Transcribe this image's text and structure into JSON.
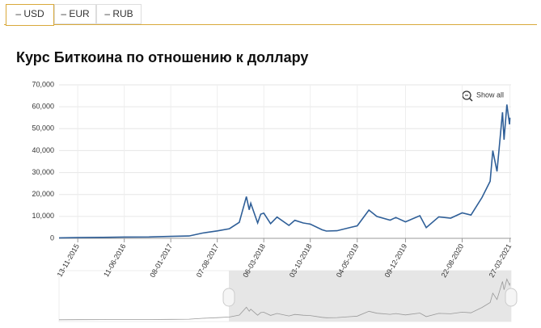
{
  "tabs": [
    "– USD",
    "– EUR",
    "– RUB"
  ],
  "chart_data": {
    "type": "line",
    "title": "Курс Биткоина по отношению к доллару",
    "reset_zoom": "Show all",
    "series": [
      {
        "color": "#2f5f98",
        "x": [
          "2015-08-20",
          "2015-11-13",
          "2016-03-01",
          "2016-06-11",
          "2016-10-01",
          "2017-01-08",
          "2017-04-01",
          "2017-06-01",
          "2017-08-07",
          "2017-10-01",
          "2017-11-15",
          "2017-12-17",
          "2017-12-30",
          "2018-01-06",
          "2018-02-06",
          "2018-02-20",
          "2018-03-06",
          "2018-04-06",
          "2018-05-05",
          "2018-06-28",
          "2018-07-25",
          "2018-09-01",
          "2018-10-03",
          "2018-11-25",
          "2018-12-15",
          "2019-02-01",
          "2019-04-05",
          "2019-05-04",
          "2019-06-26",
          "2019-08-01",
          "2019-09-30",
          "2019-10-26",
          "2019-12-09",
          "2020-02-12",
          "2020-03-12",
          "2020-05-08",
          "2020-07-01",
          "2020-08-22",
          "2020-10-01",
          "2020-11-20",
          "2020-12-27",
          "2021-01-08",
          "2021-01-27",
          "2021-02-21",
          "2021-02-28",
          "2021-03-13",
          "2021-03-25",
          "2021-03-27"
        ],
        "values": [
          230,
          330,
          430,
          600,
          610,
          900,
          1080,
          2400,
          3400,
          4400,
          7300,
          19000,
          13000,
          16000,
          7000,
          11000,
          11500,
          6700,
          9700,
          5900,
          8200,
          7000,
          6500,
          3900,
          3300,
          3450,
          5000,
          5700,
          12900,
          10000,
          8300,
          9500,
          7500,
          10300,
          4900,
          9800,
          9200,
          11600,
          10600,
          18600,
          26000,
          40000,
          30500,
          57500,
          45000,
          61000,
          52000,
          55000
        ]
      }
    ],
    "xlim": [
      "2015-08-20",
      "2021-04-01"
    ],
    "xticks": [
      {
        "value": "2015-11-13",
        "label": "13-11-2015"
      },
      {
        "value": "2016-06-11",
        "label": "11-06-2016"
      },
      {
        "value": "2017-01-08",
        "label": "08-01-2017"
      },
      {
        "value": "2017-08-07",
        "label": "07-08-2017"
      },
      {
        "value": "2018-03-06",
        "label": "06-03-2018"
      },
      {
        "value": "2018-10-03",
        "label": "03-10-2018"
      },
      {
        "value": "2019-05-04",
        "label": "04-05-2019"
      },
      {
        "value": "2019-12-09",
        "label": "09-12-2019"
      },
      {
        "value": "2020-08-22",
        "label": "22-08-2020"
      },
      {
        "value": "2021-03-27",
        "label": "27-03-2021"
      }
    ],
    "ylim": [
      0,
      70000
    ],
    "yticks": [
      0,
      {
        "value": 10000,
        "label": "10,000"
      },
      {
        "value": 20000,
        "label": "20,000"
      },
      {
        "value": 30000,
        "label": "30,000"
      },
      {
        "value": 40000,
        "label": "40,000"
      },
      {
        "value": 50000,
        "label": "50,000"
      },
      {
        "value": 60000,
        "label": "60,000"
      },
      {
        "value": 70000,
        "label": "70,000"
      }
    ],
    "grid": true
  }
}
